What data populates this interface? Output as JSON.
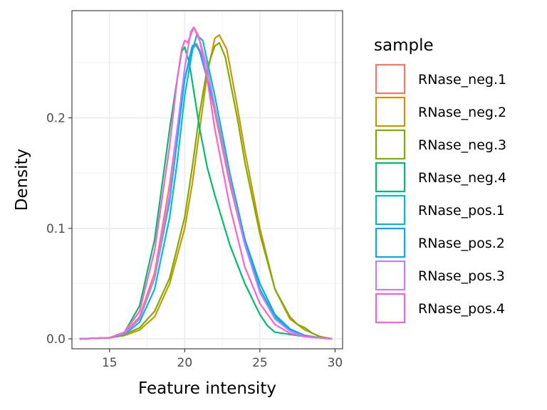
{
  "chart_data": {
    "type": "line",
    "subtype": "density",
    "title": "",
    "xlabel": "Feature intensity",
    "ylabel": "Density",
    "xlim": [
      12.5,
      30.5
    ],
    "ylim": [
      -0.009,
      0.297
    ],
    "x_ticks": [
      15,
      20,
      25,
      30
    ],
    "y_ticks": [
      0.0,
      0.1,
      0.2
    ],
    "y_tick_labels": [
      "0.0",
      "0.1",
      "0.2"
    ],
    "grid": true,
    "legend": {
      "title": "sample",
      "position": "right"
    },
    "series": [
      {
        "name": "RNase_neg.1",
        "color": "#F8766D",
        "points": [
          [
            13,
            0
          ],
          [
            15,
            0.001
          ],
          [
            16,
            0.005
          ],
          [
            17,
            0.02
          ],
          [
            18,
            0.06
          ],
          [
            19,
            0.14
          ],
          [
            19.5,
            0.19
          ],
          [
            20,
            0.235
          ],
          [
            20.5,
            0.262
          ],
          [
            20.8,
            0.267
          ],
          [
            21.2,
            0.255
          ],
          [
            22,
            0.205
          ],
          [
            23,
            0.14
          ],
          [
            24,
            0.085
          ],
          [
            25,
            0.045
          ],
          [
            26,
            0.02
          ],
          [
            27,
            0.008
          ],
          [
            28,
            0.003
          ],
          [
            29,
            0.001
          ],
          [
            29.8,
            0
          ]
        ]
      },
      {
        "name": "RNase_neg.2",
        "color": "#CD9600",
        "points": [
          [
            13,
            0
          ],
          [
            15,
            0.001
          ],
          [
            16,
            0.003
          ],
          [
            17,
            0.008
          ],
          [
            18,
            0.02
          ],
          [
            19,
            0.05
          ],
          [
            20,
            0.1
          ],
          [
            20.5,
            0.14
          ],
          [
            21,
            0.19
          ],
          [
            21.5,
            0.24
          ],
          [
            22,
            0.272
          ],
          [
            22.3,
            0.275
          ],
          [
            22.8,
            0.262
          ],
          [
            23.5,
            0.21
          ],
          [
            24,
            0.17
          ],
          [
            25,
            0.1
          ],
          [
            26,
            0.045
          ],
          [
            27,
            0.018
          ],
          [
            28,
            0.008
          ],
          [
            29,
            0.002
          ],
          [
            29.8,
            0
          ]
        ]
      },
      {
        "name": "RNase_neg.3",
        "color": "#7CAE00",
        "points": [
          [
            13,
            0
          ],
          [
            15,
            0.001
          ],
          [
            16,
            0.004
          ],
          [
            17,
            0.01
          ],
          [
            18,
            0.025
          ],
          [
            19,
            0.055
          ],
          [
            20,
            0.11
          ],
          [
            20.5,
            0.155
          ],
          [
            21,
            0.205
          ],
          [
            21.5,
            0.245
          ],
          [
            22,
            0.265
          ],
          [
            22.3,
            0.268
          ],
          [
            22.7,
            0.255
          ],
          [
            23.5,
            0.2
          ],
          [
            24,
            0.16
          ],
          [
            25,
            0.095
          ],
          [
            26,
            0.045
          ],
          [
            27,
            0.02
          ],
          [
            27.5,
            0.013
          ],
          [
            28,
            0.01
          ],
          [
            28.5,
            0.005
          ],
          [
            29,
            0.002
          ],
          [
            29.8,
            0
          ]
        ]
      },
      {
        "name": "RNase_neg.4",
        "color": "#00BE67",
        "points": [
          [
            13,
            0
          ],
          [
            15,
            0.001
          ],
          [
            16,
            0.006
          ],
          [
            17,
            0.03
          ],
          [
            18,
            0.09
          ],
          [
            19,
            0.19
          ],
          [
            19.5,
            0.235
          ],
          [
            19.8,
            0.26
          ],
          [
            20,
            0.264
          ],
          [
            20.3,
            0.25
          ],
          [
            21,
            0.19
          ],
          [
            21.5,
            0.155
          ],
          [
            22,
            0.13
          ],
          [
            23,
            0.085
          ],
          [
            24,
            0.05
          ],
          [
            25,
            0.022
          ],
          [
            25.5,
            0.012
          ],
          [
            26,
            0.006
          ],
          [
            27,
            0.004
          ],
          [
            28,
            0.002
          ],
          [
            29,
            0.001
          ],
          [
            29.8,
            0
          ]
        ]
      },
      {
        "name": "RNase_pos.1",
        "color": "#00BFC4",
        "points": [
          [
            13,
            0
          ],
          [
            15,
            0.001
          ],
          [
            16,
            0.004
          ],
          [
            17,
            0.015
          ],
          [
            18,
            0.045
          ],
          [
            19,
            0.11
          ],
          [
            19.5,
            0.16
          ],
          [
            20,
            0.22
          ],
          [
            20.5,
            0.26
          ],
          [
            20.8,
            0.275
          ],
          [
            21.2,
            0.27
          ],
          [
            22,
            0.22
          ],
          [
            23,
            0.15
          ],
          [
            24,
            0.09
          ],
          [
            25,
            0.045
          ],
          [
            26,
            0.02
          ],
          [
            27,
            0.008
          ],
          [
            28,
            0.003
          ],
          [
            29,
            0.001
          ],
          [
            29.8,
            0
          ]
        ]
      },
      {
        "name": "RNase_pos.2",
        "color": "#00A9FF",
        "points": [
          [
            13,
            0
          ],
          [
            15,
            0.001
          ],
          [
            16,
            0.005
          ],
          [
            17,
            0.018
          ],
          [
            18,
            0.055
          ],
          [
            19,
            0.125
          ],
          [
            19.5,
            0.18
          ],
          [
            20,
            0.235
          ],
          [
            20.5,
            0.265
          ],
          [
            20.7,
            0.267
          ],
          [
            21,
            0.26
          ],
          [
            22,
            0.21
          ],
          [
            23,
            0.145
          ],
          [
            24,
            0.09
          ],
          [
            25,
            0.05
          ],
          [
            26,
            0.022
          ],
          [
            27,
            0.009
          ],
          [
            28,
            0.003
          ],
          [
            29,
            0.001
          ],
          [
            29.8,
            0
          ]
        ]
      },
      {
        "name": "RNase_pos.3",
        "color": "#C77CFF",
        "points": [
          [
            13,
            0
          ],
          [
            15,
            0.001
          ],
          [
            16,
            0.005
          ],
          [
            17,
            0.018
          ],
          [
            18,
            0.055
          ],
          [
            19,
            0.13
          ],
          [
            19.5,
            0.19
          ],
          [
            20,
            0.245
          ],
          [
            20.4,
            0.278
          ],
          [
            20.6,
            0.282
          ],
          [
            20.9,
            0.275
          ],
          [
            21.5,
            0.245
          ],
          [
            22,
            0.21
          ],
          [
            23,
            0.145
          ],
          [
            24,
            0.085
          ],
          [
            25,
            0.042
          ],
          [
            26,
            0.018
          ],
          [
            27,
            0.007
          ],
          [
            28,
            0.002
          ],
          [
            29,
            0.001
          ],
          [
            29.8,
            0
          ]
        ]
      },
      {
        "name": "RNase_pos.4",
        "color": "#FF61CC",
        "points": [
          [
            13,
            0
          ],
          [
            15,
            0.001
          ],
          [
            16,
            0.006
          ],
          [
            17,
            0.025
          ],
          [
            18,
            0.08
          ],
          [
            19,
            0.175
          ],
          [
            19.5,
            0.235
          ],
          [
            19.8,
            0.262
          ],
          [
            20,
            0.27
          ],
          [
            20.2,
            0.268
          ],
          [
            20.6,
            0.282
          ],
          [
            21,
            0.27
          ],
          [
            21.5,
            0.235
          ],
          [
            22,
            0.19
          ],
          [
            23,
            0.12
          ],
          [
            24,
            0.065
          ],
          [
            25,
            0.032
          ],
          [
            26,
            0.013
          ],
          [
            27,
            0.005
          ],
          [
            28,
            0.002
          ],
          [
            29,
            0.001
          ],
          [
            29.8,
            0
          ]
        ]
      }
    ]
  }
}
